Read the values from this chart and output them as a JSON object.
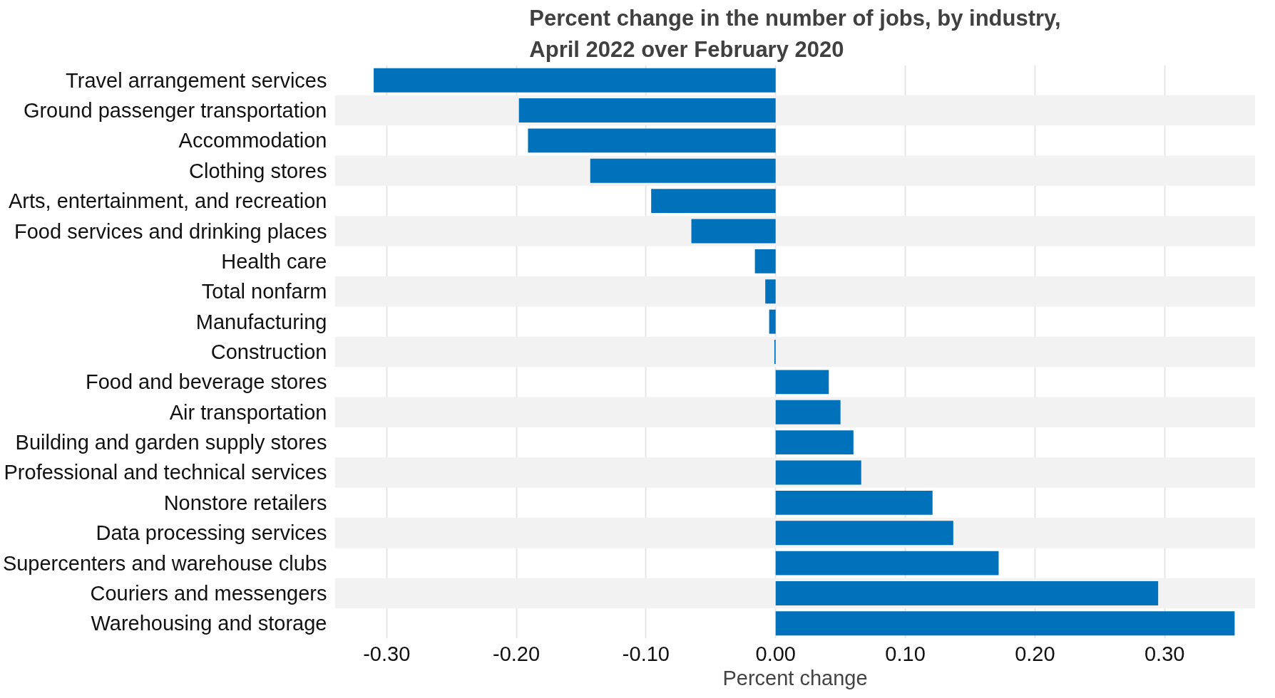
{
  "chart_data": {
    "type": "bar",
    "orientation": "horizontal",
    "title": "Percent change in the number of jobs, by industry,\nApril 2022 over February 2020",
    "xlabel": "Percent change",
    "categories": [
      "Travel arrangement services",
      "Ground passenger transportation",
      "Accommodation",
      "Clothing stores",
      "Arts, entertainment, and recreation",
      "Food services and drinking places",
      "Health care",
      "Total nonfarm",
      "Manufacturing",
      "Construction",
      "Food and beverage stores",
      "Air transportation",
      "Building and garden supply stores",
      "Professional and technical services",
      "Nonstore retailers",
      "Data processing services",
      "Supercenters and warehouse clubs",
      "Couriers and messengers",
      "Warehousing and storage"
    ],
    "values": [
      -0.31,
      -0.198,
      -0.191,
      -0.143,
      -0.096,
      -0.065,
      -0.016,
      -0.008,
      -0.005,
      -0.001,
      0.041,
      0.05,
      0.06,
      0.066,
      0.121,
      0.137,
      0.172,
      0.295,
      0.354
    ],
    "color": "#0072bb",
    "xlim": [
      -0.34,
      0.37
    ],
    "xticks": [
      {
        "value": -0.3,
        "label": "-0.30"
      },
      {
        "value": -0.2,
        "label": "-0.20"
      },
      {
        "value": -0.1,
        "label": "-0.10"
      },
      {
        "value": 0,
        "label": "0.00"
      },
      {
        "value": 0.1,
        "label": "0.10"
      },
      {
        "value": 0.2,
        "label": "0.20"
      },
      {
        "value": 0.3,
        "label": "0.30"
      }
    ],
    "grid": "x"
  }
}
